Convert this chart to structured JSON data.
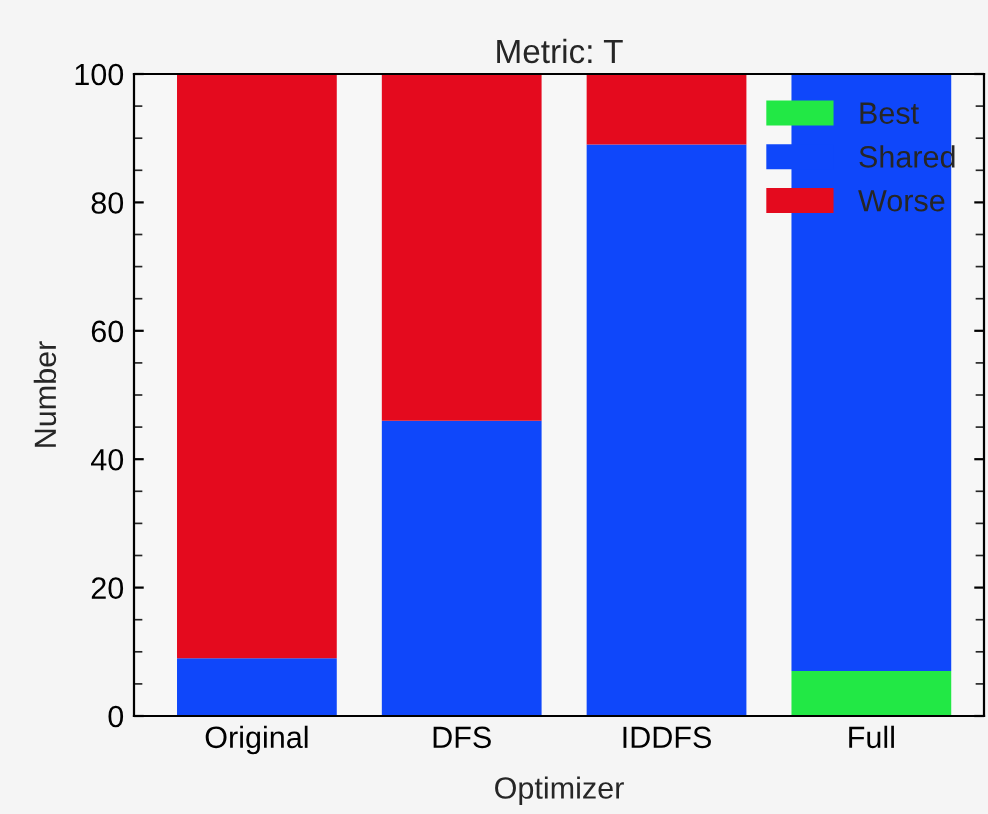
{
  "chart_data": {
    "type": "bar",
    "title": "Metric: T",
    "xlabel": "Optimizer",
    "ylabel": "Number",
    "categories": [
      "Original",
      "DFS",
      "IDDFS",
      "Full"
    ],
    "stacked": true,
    "series": [
      {
        "name": "Best",
        "color": "#22e845",
        "values": [
          0,
          0,
          0,
          7
        ]
      },
      {
        "name": "Shared",
        "color": "#0f47fa",
        "values": [
          9,
          46,
          89,
          93
        ]
      },
      {
        "name": "Worse",
        "color": "#e40a1e",
        "values": [
          91,
          54,
          11,
          0
        ]
      }
    ],
    "ylim": [
      0,
      100
    ],
    "yticks": [
      0,
      20,
      40,
      60,
      80,
      100
    ],
    "grid": false,
    "legend": "top right"
  }
}
